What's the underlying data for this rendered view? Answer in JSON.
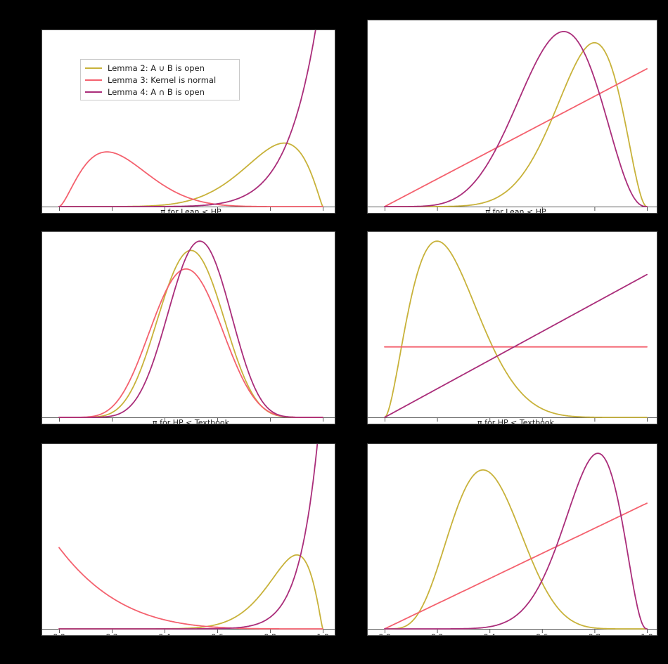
{
  "figure": {
    "background": "#000000",
    "panel_background": "#ffffff",
    "axis_color": "#5a5a5a",
    "text_color": "#1c1c1c",
    "legend": {
      "border_color": "#c9c9c9",
      "position": "upper-left-of-first-subplot",
      "entries": [
        {
          "label": "Lemma 2: A ∪ B is open",
          "color": "#c8b23a"
        },
        {
          "label": "Lemma 3: Kernel is normal",
          "color": "#f4616e"
        },
        {
          "label": "Lemma 4: A ∩ B is open",
          "color": "#aa2d7a"
        }
      ]
    }
  },
  "chart_data": [
    {
      "id": "row1-col1",
      "type": "line",
      "xlabel": "π for Lean < HP",
      "x_range": [
        0,
        1
      ],
      "x_ticks": [
        0,
        0.2,
        0.4,
        0.6,
        0.8,
        1.0
      ],
      "x_tick_labels": [],
      "grid": false,
      "has_legend": true,
      "series": [
        {
          "name": "Lemma 2: A ∪ B is open",
          "dist": "beta",
          "a": 8.0,
          "b": 2.2,
          "peak_x": 0.85,
          "peak_frac": 0.36
        },
        {
          "name": "Lemma 3: Kernel is normal",
          "dist": "beta",
          "a": 2.6,
          "b": 8.2,
          "peak_x": 0.18,
          "peak_frac": 0.31
        },
        {
          "name": "Lemma 4: A ∩ B is open",
          "dist": "beta",
          "a": 9.6,
          "b": 1.0,
          "peak_x": 1.0,
          "peak_frac": 1.27
        }
      ]
    },
    {
      "id": "row1-col2",
      "type": "line",
      "xlabel": "π for Lean < HP",
      "x_range": [
        0,
        1
      ],
      "x_ticks": [
        0,
        0.2,
        0.4,
        0.6,
        0.8,
        1.0
      ],
      "x_tick_labels": [],
      "grid": false,
      "has_legend": false,
      "series": [
        {
          "name": "Lemma 2: A ∪ B is open",
          "dist": "beta",
          "a": 9.0,
          "b": 3.0,
          "peak_x": 0.8,
          "peak_frac": 0.88
        },
        {
          "name": "Lemma 3: Kernel is normal",
          "dist": "beta",
          "a": 2.0,
          "b": 1.0,
          "peak_x": 1.0,
          "peak_frac": 0.74
        },
        {
          "name": "Lemma 4: A ∩ B is open",
          "dist": "beta",
          "a": 6.6,
          "b": 3.6,
          "peak_x": 0.69,
          "peak_frac": 0.94
        }
      ]
    },
    {
      "id": "row2-col1",
      "type": "line",
      "xlabel": "π for HP < Textbook",
      "x_range": [
        0,
        1
      ],
      "x_ticks": [
        0,
        0.2,
        0.4,
        0.6,
        0.8,
        1.0
      ],
      "x_tick_labels": [],
      "grid": false,
      "has_legend": false,
      "series": [
        {
          "name": "Lemma 2: A ∪ B is open",
          "dist": "beta",
          "a": 9.0,
          "b": 9.0,
          "peak_x": 0.5,
          "peak_frac": 0.9
        },
        {
          "name": "Lemma 3: Kernel is normal",
          "dist": "beta",
          "a": 7.5,
          "b": 8.0,
          "peak_x": 0.48,
          "peak_frac": 0.8
        },
        {
          "name": "Lemma 4: A ∩ B is open",
          "dist": "beta",
          "a": 10.5,
          "b": 9.3,
          "peak_x": 0.53,
          "peak_frac": 0.95
        }
      ]
    },
    {
      "id": "row2-col2",
      "type": "line",
      "xlabel": "π for HP < Textbook",
      "x_range": [
        0,
        1
      ],
      "x_ticks": [
        0,
        0.2,
        0.4,
        0.6,
        0.8,
        1.0
      ],
      "x_tick_labels": [],
      "grid": false,
      "has_legend": false,
      "series": [
        {
          "name": "Lemma 2: A ∪ B is open",
          "dist": "beta",
          "a": 2.8,
          "b": 8.2,
          "peak_x": 0.2,
          "peak_frac": 0.95
        },
        {
          "name": "Lemma 3: Kernel is normal",
          "dist": "beta",
          "a": 1.0,
          "b": 1.0,
          "peak_x": 0.5,
          "peak_frac": 0.38
        },
        {
          "name": "Lemma 4: A ∩ B is open",
          "dist": "beta",
          "a": 2.0,
          "b": 1.0,
          "peak_x": 1.0,
          "peak_frac": 0.77
        }
      ]
    },
    {
      "id": "row3-col1",
      "type": "line",
      "xlabel": "",
      "x_range": [
        0,
        1
      ],
      "x_ticks": [
        0,
        0.2,
        0.4,
        0.6,
        0.8,
        1.0
      ],
      "x_tick_labels": [
        "0.0",
        "0.2",
        "0.4",
        "0.6",
        "0.8",
        "1.0"
      ],
      "grid": false,
      "has_legend": false,
      "series": [
        {
          "name": "Lemma 2: A ∪ B is open",
          "dist": "beta",
          "a": 12.0,
          "b": 2.2,
          "peak_x": 0.9,
          "peak_frac": 0.4
        },
        {
          "name": "Lemma 3: Kernel is normal",
          "dist": "beta",
          "a": 1.0,
          "b": 5.3,
          "peak_x": 0.0,
          "peak_frac": 0.44
        },
        {
          "name": "Lemma 4: A ∩ B is open",
          "dist": "beta",
          "a": 14.7,
          "b": 1.0,
          "peak_x": 1.0,
          "peak_frac": 1.33
        }
      ]
    },
    {
      "id": "row3-col2",
      "type": "line",
      "xlabel": "",
      "x_range": [
        0,
        1
      ],
      "x_ticks": [
        0,
        0.2,
        0.4,
        0.6,
        0.8,
        1.0
      ],
      "x_tick_labels": [
        "0.0",
        "0.2",
        "0.4",
        "0.6",
        "0.8",
        "1.0"
      ],
      "grid": false,
      "has_legend": false,
      "series": [
        {
          "name": "Lemma 2: A ∪ B is open",
          "dist": "beta",
          "a": 5.5,
          "b": 8.5,
          "peak_x": 0.38,
          "peak_frac": 0.86
        },
        {
          "name": "Lemma 3: Kernel is normal",
          "dist": "beta",
          "a": 2.0,
          "b": 1.0,
          "peak_x": 1.0,
          "peak_frac": 0.68
        },
        {
          "name": "Lemma 4: A ∩ B is open",
          "dist": "beta",
          "a": 11.0,
          "b": 3.3,
          "peak_x": 0.81,
          "peak_frac": 0.95
        }
      ]
    }
  ]
}
